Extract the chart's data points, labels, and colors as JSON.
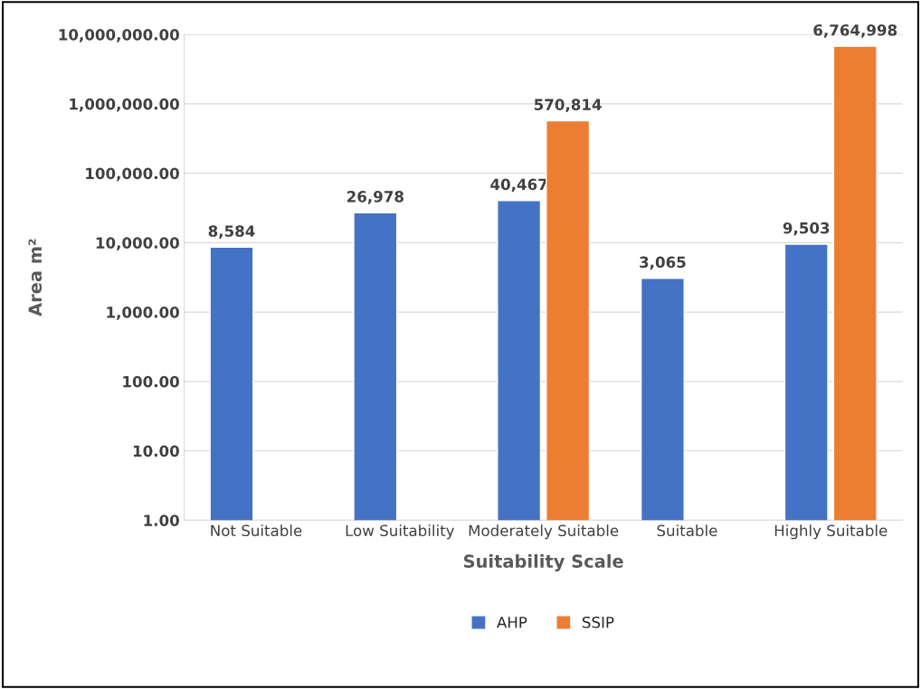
{
  "chart_data": {
    "type": "bar",
    "xlabel": "Suitability Scale",
    "ylabel": "Area m²",
    "categories": [
      "Not Suitable",
      "Low Suitability",
      "Moderately Suitable",
      "Suitable",
      "Highly Suitable"
    ],
    "series": [
      {
        "name": "AHP",
        "color": "#4472c4",
        "values": [
          8584,
          26978,
          40467,
          3065,
          9503
        ],
        "value_labels": [
          "8,584",
          "26,978",
          "40,467",
          "3,065",
          "9,503"
        ]
      },
      {
        "name": "SSIP",
        "color": "#ed7d31",
        "values": [
          null,
          null,
          570814,
          null,
          6764998
        ],
        "value_labels": [
          null,
          null,
          "570,814",
          null,
          "6,764,998"
        ]
      }
    ],
    "log": "y",
    "ylim": [
      1,
      10000000
    ],
    "yticks": [
      {
        "value": 1,
        "label": "1.00"
      },
      {
        "value": 10,
        "label": "10.00"
      },
      {
        "value": 100,
        "label": "100.00"
      },
      {
        "value": 1000,
        "label": "1,000.00"
      },
      {
        "value": 10000,
        "label": "10,000.00"
      },
      {
        "value": 100000,
        "label": "100,000.00"
      },
      {
        "value": 1000000,
        "label": "1,000,000.00"
      },
      {
        "value": 10000000,
        "label": "10,000,000.00"
      }
    ],
    "grid": "y",
    "legend": "bottom"
  }
}
